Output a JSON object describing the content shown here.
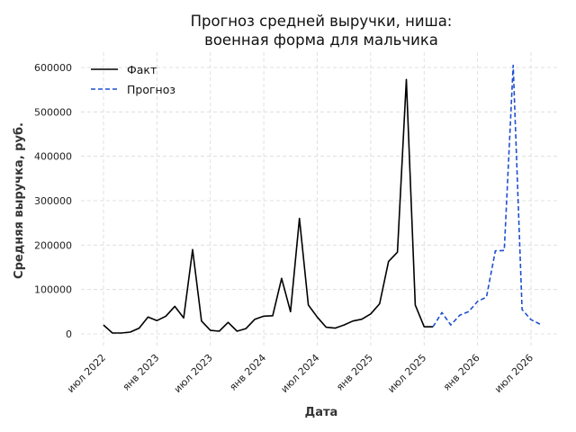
{
  "chart_data": {
    "type": "line",
    "title": [
      "Прогноз средней выручки, ниша:",
      "военная форма для мальчика"
    ],
    "xlabel": "Дата",
    "ylabel": "Средняя выручка, руб.",
    "ylim": [
      -20000,
      630000
    ],
    "yticks": [
      0,
      100000,
      200000,
      300000,
      400000,
      500000,
      600000
    ],
    "ytick_labels": [
      "0",
      "100000",
      "200000",
      "300000",
      "400000",
      "500000",
      "600000"
    ],
    "xticks": [
      "2022-07",
      "2023-01",
      "2023-07",
      "2024-01",
      "2024-07",
      "2025-01",
      "2025-07",
      "2026-01",
      "2026-07"
    ],
    "xtick_labels": [
      "июл 2022",
      "янв 2023",
      "июл 2023",
      "янв 2024",
      "июл 2024",
      "янв 2025",
      "июл 2025",
      "янв 2026",
      "июл 2026"
    ],
    "grid": true,
    "legend_position": "top-left",
    "series": [
      {
        "name": "Факт",
        "color": "#000000",
        "style": "solid",
        "x": [
          "2022-07",
          "2022-08",
          "2022-09",
          "2022-10",
          "2022-11",
          "2022-12",
          "2023-01",
          "2023-02",
          "2023-03",
          "2023-04",
          "2023-05",
          "2023-06",
          "2023-07",
          "2023-08",
          "2023-09",
          "2023-10",
          "2023-11",
          "2023-12",
          "2024-01",
          "2024-02",
          "2024-03",
          "2024-04",
          "2024-05",
          "2024-06",
          "2024-07",
          "2024-08",
          "2024-09",
          "2024-10",
          "2024-11",
          "2024-12",
          "2025-01",
          "2025-02",
          "2025-03",
          "2025-04",
          "2025-05",
          "2025-06",
          "2025-07",
          "2025-08",
          "2025-09"
        ],
        "y": [
          20000,
          2000,
          2000,
          4000,
          13000,
          38000,
          30000,
          40000,
          62000,
          36000,
          190000,
          29000,
          8000,
          6000,
          26000,
          6000,
          12000,
          33000,
          40000,
          41000,
          125000,
          50000,
          260000,
          65000,
          38000,
          15000,
          13000,
          20000,
          29000,
          33000,
          45000,
          68000,
          163000,
          184000,
          573000,
          65000,
          16000,
          16000,
          null
        ]
      },
      {
        "name": "Прогноз",
        "color": "#1f4fd1",
        "style": "dashed",
        "x": [
          "2025-08",
          "2025-09",
          "2025-10",
          "2025-11",
          "2025-12",
          "2026-01",
          "2026-02",
          "2026-03",
          "2026-04",
          "2026-05",
          "2026-06",
          "2026-07",
          "2026-08"
        ],
        "y": [
          16000,
          48000,
          20000,
          42000,
          50000,
          73000,
          83000,
          187000,
          188000,
          605000,
          55000,
          32000,
          22000
        ]
      }
    ]
  }
}
